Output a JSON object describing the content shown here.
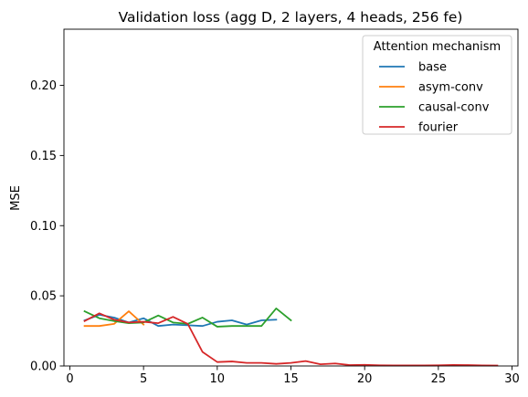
{
  "chart_data": {
    "type": "line",
    "title": "Validation loss (agg D, 2 layers, 4 heads, 256 fe)",
    "xlabel": "",
    "ylabel": "MSE",
    "xlim": [
      -0.4,
      30.4
    ],
    "ylim": [
      0,
      0.24
    ],
    "xticks": [
      0,
      5,
      10,
      15,
      20,
      25,
      30
    ],
    "yticks": [
      0.0,
      0.05,
      0.1,
      0.15,
      0.2
    ],
    "xtick_labels": [
      "0",
      "5",
      "10",
      "15",
      "20",
      "25",
      "30"
    ],
    "ytick_labels": [
      "0.00",
      "0.05",
      "0.10",
      "0.15",
      "0.20"
    ],
    "grid": false,
    "legend": {
      "title": "Attention mechanism",
      "placement": "top-right"
    },
    "series": [
      {
        "name": "base",
        "color": "#1f77b4",
        "x": [
          1,
          2,
          3,
          4,
          5,
          6,
          7,
          8,
          9,
          10,
          11,
          12,
          13,
          14
        ],
        "y": [
          0.0325,
          0.0365,
          0.0345,
          0.031,
          0.034,
          0.0285,
          0.0295,
          0.029,
          0.0285,
          0.0315,
          0.0325,
          0.0295,
          0.0325,
          0.033
        ]
      },
      {
        "name": "asym-conv",
        "color": "#ff7f0e",
        "x": [
          1,
          2,
          3,
          4,
          5
        ],
        "y": [
          0.0285,
          0.0285,
          0.03,
          0.039,
          0.0295
        ]
      },
      {
        "name": "causal-conv",
        "color": "#2ca02c",
        "x": [
          1,
          2,
          3,
          4,
          5,
          6,
          7,
          8,
          9,
          10,
          11,
          12,
          13,
          14,
          15
        ],
        "y": [
          0.039,
          0.034,
          0.032,
          0.0305,
          0.031,
          0.036,
          0.031,
          0.03,
          0.0345,
          0.028,
          0.0285,
          0.0285,
          0.0285,
          0.041,
          0.0325
        ]
      },
      {
        "name": "fourier",
        "color": "#d62728",
        "x": [
          1,
          2,
          3,
          4,
          5,
          6,
          7,
          8,
          9,
          10,
          11,
          12,
          13,
          14,
          15,
          16,
          17,
          18,
          19,
          20,
          21,
          22,
          23,
          24,
          25,
          26,
          27,
          28,
          29
        ],
        "y": [
          0.032,
          0.0375,
          0.033,
          0.031,
          0.0315,
          0.0305,
          0.035,
          0.03,
          0.01,
          0.0028,
          0.0032,
          0.0022,
          0.0022,
          0.0015,
          0.0022,
          0.0035,
          0.0012,
          0.0018,
          0.0006,
          0.0008,
          0.0005,
          0.0004,
          0.0004,
          0.0004,
          0.0005,
          0.0007,
          0.0006,
          0.0004,
          0.0003
        ]
      }
    ]
  }
}
